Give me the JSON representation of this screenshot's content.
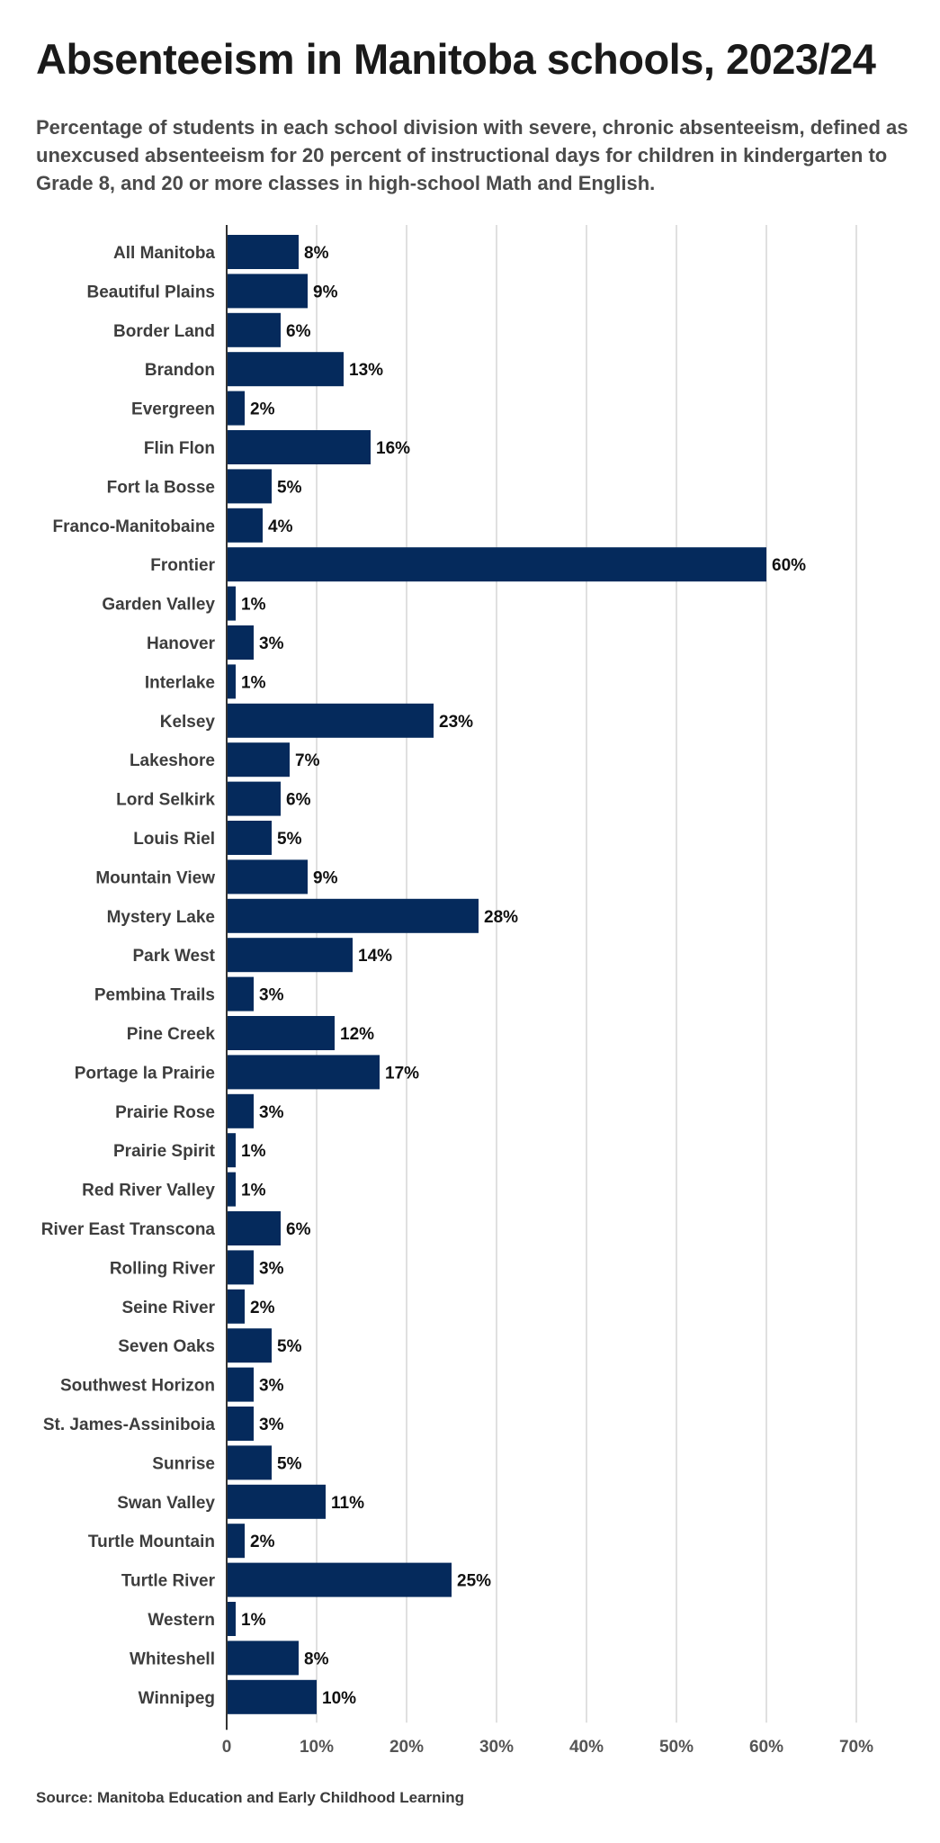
{
  "title": "Absenteeism in Manitoba schools, 2023/24",
  "subtitle": "Percentage of students in each school division with severe, chronic absenteeism, defined as unexcused absenteeism for 20 percent of instructional days for children in kindergarten to Grade 8, and 20 or more classes in high-school Math and English.",
  "source": "Source: Manitoba Education and Early Childhood Learning",
  "chart_data": {
    "type": "bar",
    "orientation": "horizontal",
    "categories": [
      "All Manitoba",
      "Beautiful Plains",
      "Border Land",
      "Brandon",
      "Evergreen",
      "Flin Flon",
      "Fort la Bosse",
      "Franco-Manitobaine",
      "Frontier",
      "Garden Valley",
      "Hanover",
      "Interlake",
      "Kelsey",
      "Lakeshore",
      "Lord Selkirk",
      "Louis Riel",
      "Mountain View",
      "Mystery Lake",
      "Park West",
      "Pembina Trails",
      "Pine Creek",
      "Portage la Prairie",
      "Prairie Rose",
      "Prairie Spirit",
      "Red River Valley",
      "River East Transcona",
      "Rolling River",
      "Seine River",
      "Seven Oaks",
      "Southwest Horizon",
      "St. James-Assiniboia",
      "Sunrise",
      "Swan Valley",
      "Turtle Mountain",
      "Turtle River",
      "Western",
      "Whiteshell",
      "Winnipeg"
    ],
    "values": [
      8,
      9,
      6,
      13,
      2,
      16,
      5,
      4,
      60,
      1,
      3,
      1,
      23,
      7,
      6,
      5,
      9,
      28,
      14,
      3,
      12,
      17,
      3,
      1,
      1,
      6,
      3,
      2,
      5,
      3,
      3,
      5,
      11,
      2,
      25,
      1,
      8,
      10
    ],
    "value_labels": [
      "8%",
      "9%",
      "6%",
      "13%",
      "2%",
      "16%",
      "5%",
      "4%",
      "60%",
      "1%",
      "3%",
      "1%",
      "23%",
      "7%",
      "6%",
      "5%",
      "9%",
      "28%",
      "14%",
      "3%",
      "12%",
      "17%",
      "3%",
      "1%",
      "1%",
      "6%",
      "3%",
      "2%",
      "5%",
      "3%",
      "3%",
      "5%",
      "11%",
      "2%",
      "25%",
      "1%",
      "8%",
      "10%"
    ],
    "xlim": [
      0,
      70
    ],
    "x_ticks": [
      0,
      10,
      20,
      30,
      40,
      50,
      60,
      70
    ],
    "x_tick_labels": [
      "0",
      "10%",
      "20%",
      "30%",
      "40%",
      "50%",
      "60%",
      "70%"
    ],
    "grid": true,
    "bar_color": "#052a5c",
    "grid_color": "#cfcfcf"
  }
}
